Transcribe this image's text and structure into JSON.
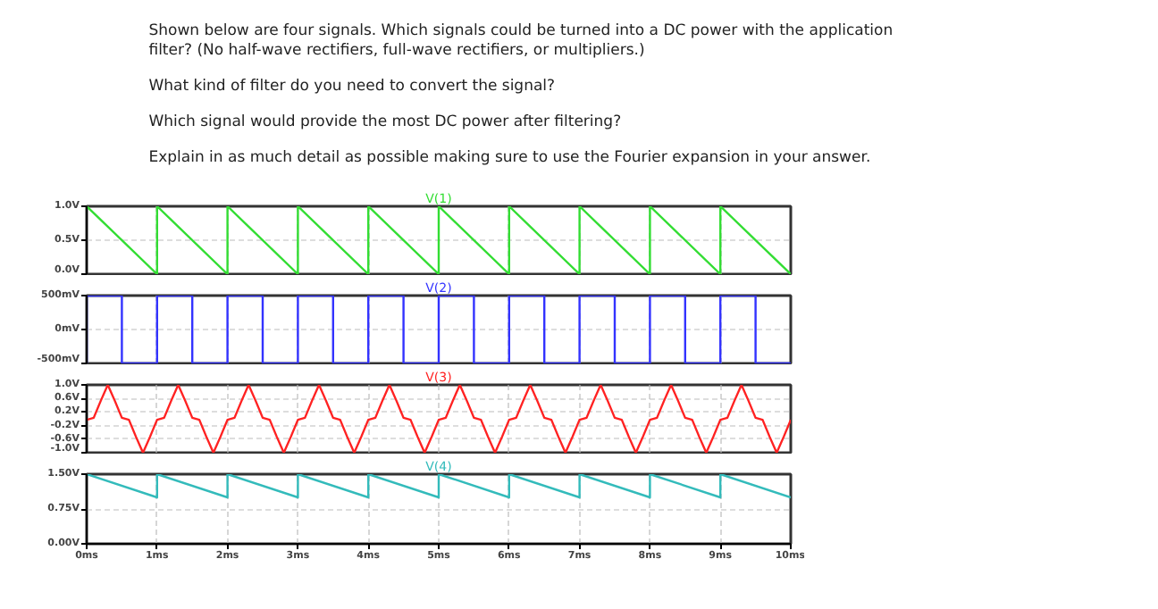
{
  "chart_data": [
    {
      "type": "other",
      "annotations": [
        "Shown below are four signals.  Which signals could be turned into a DC power with the application filter? (No half-wave rectifiers, full-wave rectifiers, or multipliers.)",
        "What kind of filter do you need to convert the signal?",
        "Which signal would provide the most DC power after filtering?",
        "Explain in as much detail as possible making sure to use the Fourier expansion in your answer."
      ]
    },
    {
      "type": "line",
      "title": "V(1)",
      "xlim": [
        0,
        10
      ],
      "xticks": [
        {
          "value": 0,
          "label": null
        },
        {
          "value": 1,
          "label": null
        },
        {
          "value": 2,
          "label": null
        },
        {
          "value": 3,
          "label": null
        },
        {
          "value": 4,
          "label": null
        },
        {
          "value": 5,
          "label": null
        },
        {
          "value": 6,
          "label": null
        },
        {
          "value": 7,
          "label": null
        },
        {
          "value": 8,
          "label": null
        },
        {
          "value": 9,
          "label": null
        },
        {
          "value": 10,
          "label": null
        }
      ],
      "ylim": [
        0,
        1
      ],
      "yticks": [
        {
          "value": 1,
          "label": "1.0V"
        },
        {
          "value": 0.5,
          "label": "0.5V"
        },
        {
          "value": 0,
          "label": "0.0V"
        }
      ],
      "grid": true,
      "tick_labels": "y",
      "series": [
        {
          "color": "#33dd33",
          "x": [
            0,
            1,
            1,
            2,
            2,
            3,
            3,
            4,
            4,
            5,
            5,
            6,
            6,
            7,
            7,
            8,
            8,
            9,
            9,
            10
          ],
          "values": [
            1,
            0,
            1,
            0,
            1,
            0,
            1,
            0,
            1,
            0,
            1,
            0,
            1,
            0,
            1,
            0,
            1,
            0,
            1,
            0
          ]
        }
      ]
    },
    {
      "type": "line",
      "title": "V(2)",
      "xlim": [
        0,
        10
      ],
      "xticks": [
        {
          "value": 0,
          "label": null
        },
        {
          "value": 1,
          "label": null
        },
        {
          "value": 2,
          "label": null
        },
        {
          "value": 3,
          "label": null
        },
        {
          "value": 4,
          "label": null
        },
        {
          "value": 5,
          "label": null
        },
        {
          "value": 6,
          "label": null
        },
        {
          "value": 7,
          "label": null
        },
        {
          "value": 8,
          "label": null
        },
        {
          "value": 9,
          "label": null
        },
        {
          "value": 10,
          "label": null
        }
      ],
      "ylim": [
        -500,
        500
      ],
      "yticks": [
        {
          "value": 500,
          "label": "500mV"
        },
        {
          "value": 0,
          "label": "0mV"
        },
        {
          "value": -500,
          "label": "-500mV"
        }
      ],
      "grid": true,
      "tick_labels": "y",
      "series": [
        {
          "color": "#3333ff",
          "x": [
            0,
            0,
            0.5,
            0.5,
            1,
            1,
            1.5,
            1.5,
            2,
            2,
            2.5,
            2.5,
            3,
            3,
            3.5,
            3.5,
            4,
            4,
            4.5,
            4.5,
            5,
            5,
            5.5,
            5.5,
            6,
            6,
            6.5,
            6.5,
            7,
            7,
            7.5,
            7.5,
            8,
            8,
            8.5,
            8.5,
            9,
            9,
            9.5,
            9.5,
            10
          ],
          "values": [
            -500,
            500,
            500,
            -500,
            -500,
            500,
            500,
            -500,
            -500,
            500,
            500,
            -500,
            -500,
            500,
            500,
            -500,
            -500,
            500,
            500,
            -500,
            -500,
            500,
            500,
            -500,
            -500,
            500,
            500,
            -500,
            -500,
            500,
            500,
            -500,
            -500,
            500,
            500,
            -500,
            -500,
            500,
            500,
            -500,
            -500
          ]
        }
      ]
    },
    {
      "type": "line",
      "title": "V(3)",
      "xlim": [
        0,
        10
      ],
      "xticks": [
        {
          "value": 0,
          "label": null
        },
        {
          "value": 1,
          "label": null
        },
        {
          "value": 2,
          "label": null
        },
        {
          "value": 3,
          "label": null
        },
        {
          "value": 4,
          "label": null
        },
        {
          "value": 5,
          "label": null
        },
        {
          "value": 6,
          "label": null
        },
        {
          "value": 7,
          "label": null
        },
        {
          "value": 8,
          "label": null
        },
        {
          "value": 9,
          "label": null
        },
        {
          "value": 10,
          "label": null
        }
      ],
      "ylim": [
        -1,
        1
      ],
      "yticks": [
        {
          "value": 1,
          "label": "1.0V"
        },
        {
          "value": 0.6,
          "label": "0.6V"
        },
        {
          "value": 0.2,
          "label": "0.2V"
        },
        {
          "value": -0.2,
          "label": "-0.2V"
        },
        {
          "value": -0.6,
          "label": "-0.6V"
        },
        {
          "value": -1,
          "label": "-1.0V"
        }
      ],
      "grid": true,
      "tick_labels": "y",
      "series": [
        {
          "color": "#ff2222",
          "x": [
            0,
            0.1,
            0.2,
            0.3,
            0.4,
            0.5,
            0.6,
            0.7,
            0.8,
            0.9,
            1,
            1.1,
            1.2,
            1.3,
            1.4,
            1.5,
            1.6,
            1.7,
            1.8,
            1.9,
            2,
            2.1,
            2.2,
            2.3,
            2.4,
            2.5,
            2.6,
            2.7,
            2.8,
            2.9,
            3,
            3.1,
            3.2,
            3.3,
            3.4,
            3.5,
            3.6,
            3.7,
            3.8,
            3.9,
            4,
            4.1,
            4.2,
            4.3,
            4.4,
            4.5,
            4.6,
            4.7,
            4.8,
            4.9,
            5,
            5.1,
            5.2,
            5.3,
            5.4,
            5.5,
            5.6,
            5.7,
            5.8,
            5.9,
            6,
            6.1,
            6.2,
            6.3,
            6.4,
            6.5,
            6.6,
            6.7,
            6.8,
            6.9,
            7,
            7.1,
            7.2,
            7.3,
            7.4,
            7.5,
            7.6,
            7.7,
            7.8,
            7.9,
            8,
            8.1,
            8.2,
            8.3,
            8.4,
            8.5,
            8.6,
            8.7,
            8.8,
            8.9,
            9,
            9.1,
            9.2,
            9.3,
            9.4,
            9.5,
            9.6,
            9.7,
            9.8,
            9.9,
            10
          ],
          "values": [
            -0.03,
            0.03,
            0.53,
            1,
            0.53,
            0.03,
            -0.03,
            -0.53,
            -1,
            -0.53,
            -0.03,
            0.03,
            0.53,
            1,
            0.53,
            0.03,
            -0.03,
            -0.53,
            -1,
            -0.53,
            -0.03,
            0.03,
            0.53,
            1,
            0.53,
            0.03,
            -0.03,
            -0.53,
            -1,
            -0.53,
            -0.03,
            0.03,
            0.53,
            1,
            0.53,
            0.03,
            -0.03,
            -0.53,
            -1,
            -0.53,
            -0.03,
            0.03,
            0.53,
            1,
            0.53,
            0.03,
            -0.03,
            -0.53,
            -1,
            -0.53,
            -0.03,
            0.03,
            0.53,
            1,
            0.53,
            0.03,
            -0.03,
            -0.53,
            -1,
            -0.53,
            -0.03,
            0.03,
            0.53,
            1,
            0.53,
            0.03,
            -0.03,
            -0.53,
            -1,
            -0.53,
            -0.03,
            0.03,
            0.53,
            1,
            0.53,
            0.03,
            -0.03,
            -0.53,
            -1,
            -0.53,
            -0.03,
            0.03,
            0.53,
            1,
            0.53,
            0.03,
            -0.03,
            -0.53,
            -1,
            -0.53,
            -0.03,
            0.03,
            0.53,
            1,
            0.53,
            0.03,
            -0.03,
            -0.53,
            -1,
            -0.53,
            -0.03
          ]
        }
      ]
    },
    {
      "type": "line",
      "title": "V(4)",
      "xlim": [
        0,
        10
      ],
      "xticks": [
        {
          "value": 0,
          "label": "0ms"
        },
        {
          "value": 1,
          "label": "1ms"
        },
        {
          "value": 2,
          "label": "2ms"
        },
        {
          "value": 3,
          "label": "3ms"
        },
        {
          "value": 4,
          "label": "4ms"
        },
        {
          "value": 5,
          "label": "5ms"
        },
        {
          "value": 6,
          "label": "6ms"
        },
        {
          "value": 7,
          "label": "7ms"
        },
        {
          "value": 8,
          "label": "8ms"
        },
        {
          "value": 9,
          "label": "9ms"
        },
        {
          "value": 10,
          "label": "10ms"
        }
      ],
      "ylim": [
        0,
        1.5
      ],
      "yticks": [
        {
          "value": 1.5,
          "label": "1.50V"
        },
        {
          "value": 0.75,
          "label": "0.75V"
        },
        {
          "value": 0,
          "label": "0.00V"
        }
      ],
      "grid": true,
      "series": [
        {
          "color": "#33bbbb",
          "x": [
            0,
            1,
            1,
            2,
            2,
            3,
            3,
            4,
            4,
            5,
            5,
            6,
            6,
            7,
            7,
            8,
            8,
            9,
            9,
            10
          ],
          "values": [
            1.5,
            1,
            1.5,
            1,
            1.5,
            1,
            1.5,
            1,
            1.5,
            1,
            1.5,
            1,
            1.5,
            1,
            1.5,
            1,
            1.5,
            1,
            1.5,
            1
          ]
        }
      ]
    }
  ]
}
